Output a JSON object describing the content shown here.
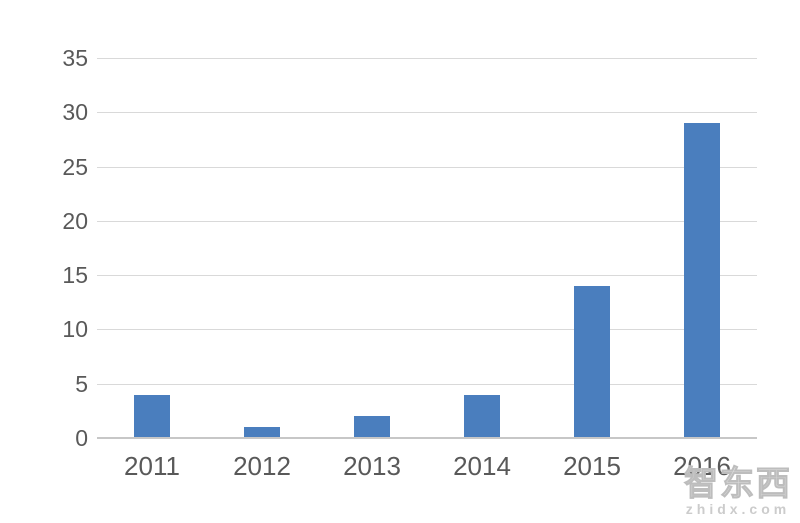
{
  "chart_data": {
    "type": "bar",
    "title": "",
    "categories": [
      "2011",
      "2012",
      "2013",
      "2014",
      "2015",
      "2016"
    ],
    "values": [
      4,
      1,
      2,
      4,
      14,
      29
    ],
    "xlabel": "",
    "ylabel": "",
    "ylim": [
      0,
      35
    ],
    "yticks": [
      0,
      5,
      10,
      15,
      20,
      25,
      30,
      35
    ],
    "grid": true,
    "legend_position": "none",
    "bar_color": "#4a7ebe",
    "gridline_color": "#d9d9d9",
    "axis_line_color": "#c7c7c7",
    "tick_label_color": "#595959"
  },
  "watermark": {
    "brand": "智东西",
    "domain": "zhidx.com"
  }
}
